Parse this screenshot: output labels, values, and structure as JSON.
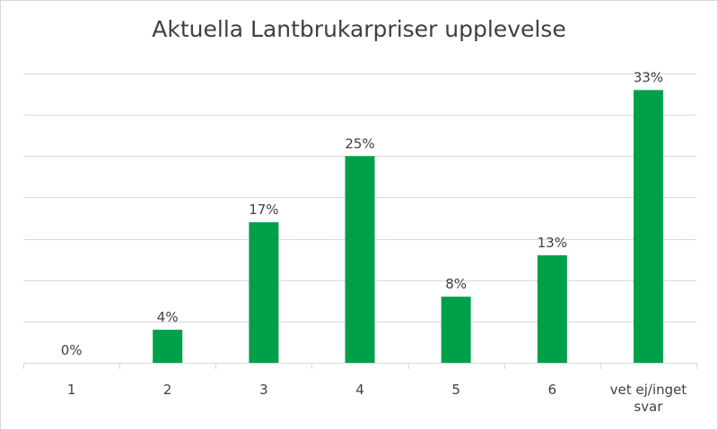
{
  "chart_data": {
    "type": "bar",
    "title": "Aktuella Lantbrukarpriser upplevelse",
    "categories": [
      "1",
      "2",
      "3",
      "4",
      "5",
      "6",
      "vet ej/inget svar"
    ],
    "values": [
      0,
      4,
      17,
      25,
      8,
      13,
      33
    ],
    "data_labels": [
      "0%",
      "4%",
      "17%",
      "25%",
      "8%",
      "13%",
      "33%"
    ],
    "value_unit": "%",
    "ylim": [
      0,
      35
    ],
    "y_gridlines": [
      0,
      5,
      10,
      15,
      20,
      25,
      30,
      35
    ],
    "grid": true,
    "legend": "none",
    "bar_color": "#00A04B",
    "gridline_color": "#d9d9d9",
    "text_color": "#404040"
  }
}
